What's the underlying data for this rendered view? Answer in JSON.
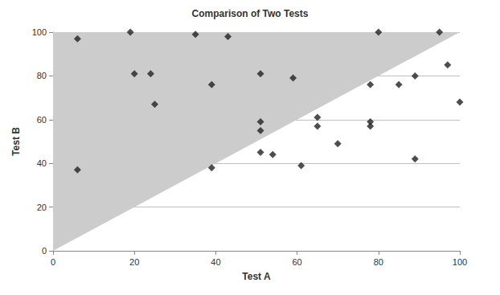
{
  "chart_data": {
    "type": "scatter",
    "title": "Comparison of Two Tests",
    "x_label": "Test A",
    "y_label": "Test B",
    "x": [
      6,
      6,
      19,
      20,
      24,
      25,
      35,
      43,
      39,
      39,
      51,
      51,
      51,
      51,
      54,
      59,
      61,
      65,
      65,
      70,
      78,
      78,
      78,
      80,
      85,
      89,
      89,
      95,
      97,
      100
    ],
    "values": [
      97,
      37,
      100,
      81,
      81,
      67,
      99,
      98,
      76,
      38,
      81,
      59,
      55,
      45,
      44,
      79,
      39,
      61,
      57,
      49,
      76,
      59,
      57,
      100,
      76,
      80,
      42,
      100,
      85,
      68
    ],
    "color": "#222222",
    "marker": "diamond",
    "xlim": [
      0,
      100
    ],
    "ylim": [
      0,
      100
    ],
    "xticks": [
      0,
      20,
      40,
      60,
      80,
      100
    ],
    "yticks": [
      0,
      20,
      40,
      60,
      80,
      100
    ],
    "grid": true
  }
}
